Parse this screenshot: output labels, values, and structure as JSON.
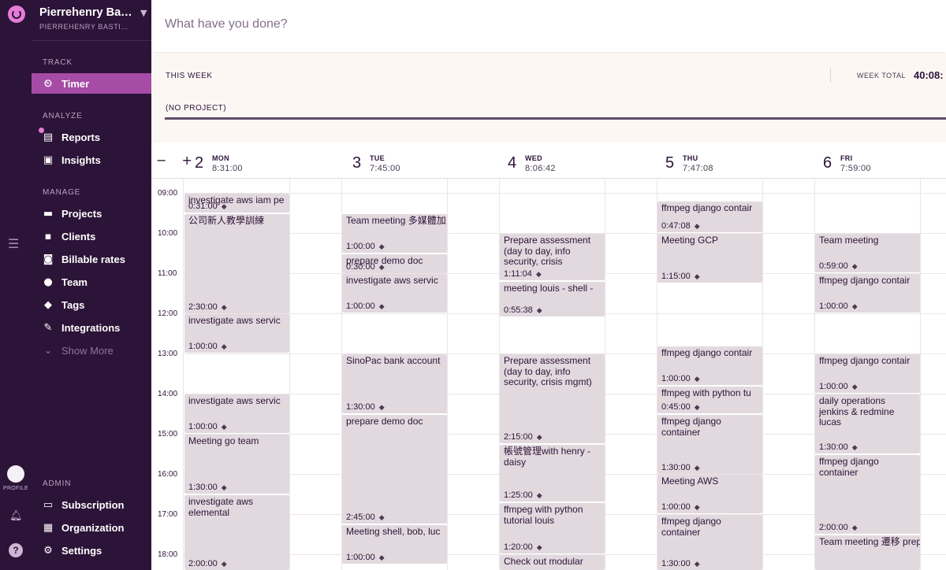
{
  "workspace": {
    "name": "Pierrehenry Bas...",
    "subtitle": "PIERREHENRY BASTIN..."
  },
  "rail": {
    "profile_label": "PROFILE"
  },
  "sidebar": {
    "sections": {
      "track": "TRACK",
      "analyze": "ANALYZE",
      "manage": "MANAGE",
      "admin": "ADMIN"
    },
    "items": [
      {
        "label": "Timer",
        "icon": "clock-icon",
        "active": true
      },
      {
        "label": "Reports",
        "icon": "reports-icon"
      },
      {
        "label": "Insights",
        "icon": "insights-icon"
      },
      {
        "label": "Projects",
        "icon": "folder-icon"
      },
      {
        "label": "Clients",
        "icon": "clients-icon"
      },
      {
        "label": "Billable rates",
        "icon": "dollar-icon"
      },
      {
        "label": "Team",
        "icon": "team-icon"
      },
      {
        "label": "Tags",
        "icon": "tag-icon"
      },
      {
        "label": "Integrations",
        "icon": "plug-icon"
      },
      {
        "label": "Show More",
        "icon": "chevron-down-icon"
      },
      {
        "label": "Subscription",
        "icon": "card-icon"
      },
      {
        "label": "Organization",
        "icon": "building-icon"
      },
      {
        "label": "Settings",
        "icon": "gear-icon"
      }
    ]
  },
  "topbar": {
    "placeholder": "What have you done?"
  },
  "weekbar": {
    "this_week": "THIS WEEK",
    "week_total_label": "WEEK TOTAL",
    "week_total": "40:08:",
    "project": "(NO PROJECT)"
  },
  "calendar": {
    "zoom": "− +",
    "hours": [
      "09:00",
      "10:00",
      "11:00",
      "12:00",
      "13:00",
      "14:00",
      "15:00",
      "16:00",
      "17:00",
      "18:00"
    ],
    "days": [
      {
        "num": "2",
        "name": "MON",
        "total": "8:31:00"
      },
      {
        "num": "3",
        "name": "TUE",
        "total": "7:45:00"
      },
      {
        "num": "4",
        "name": "WED",
        "total": "8:06:42"
      },
      {
        "num": "5",
        "name": "THU",
        "total": "7:47:08"
      },
      {
        "num": "6",
        "name": "FRI",
        "total": "7:59:00"
      }
    ],
    "entries": [
      {
        "day": 0,
        "title": "investigate aws iam pe",
        "duration": "0:31:00",
        "start": 9.0,
        "end": 9.5
      },
      {
        "day": 0,
        "title": "公司新人教學訓練",
        "duration": "2:30:00",
        "start": 9.5,
        "end": 12.0
      },
      {
        "day": 0,
        "title": "investigate aws servic",
        "duration": "1:00:00",
        "start": 12.0,
        "end": 13.0
      },
      {
        "day": 0,
        "title": "investigate aws servic",
        "duration": "1:00:00",
        "start": 14.0,
        "end": 15.0
      },
      {
        "day": 0,
        "title": "Meeting go team",
        "duration": "1:30:00",
        "start": 15.0,
        "end": 16.5
      },
      {
        "day": 0,
        "title": "investigate aws elemental",
        "duration": "2:00:00",
        "start": 16.5,
        "end": 18.5
      },
      {
        "day": 1,
        "title": "Team meeting 多媒體加",
        "duration": "1:00:00",
        "start": 9.5,
        "end": 10.5
      },
      {
        "day": 1,
        "title": "prepare demo doc",
        "duration": "0:30:00",
        "start": 10.5,
        "end": 11.0
      },
      {
        "day": 1,
        "title": "investigate aws servic",
        "duration": "1:00:00",
        "start": 11.0,
        "end": 12.0
      },
      {
        "day": 1,
        "title": "SinoPac bank account",
        "duration": "1:30:00",
        "start": 13.0,
        "end": 14.5
      },
      {
        "day": 1,
        "title": "prepare demo doc",
        "duration": "2:45:00",
        "start": 14.5,
        "end": 17.25
      },
      {
        "day": 1,
        "title": "Meeting shell, bob, luc",
        "duration": "1:00:00",
        "start": 17.25,
        "end": 18.25
      },
      {
        "day": 2,
        "title": "Prepare assessment (day to day, info security, crisis",
        "duration": "1:11:04",
        "start": 10.0,
        "end": 11.2
      },
      {
        "day": 2,
        "title": "meeting louis - shell -",
        "duration": "0:55:38",
        "start": 11.2,
        "end": 12.1
      },
      {
        "day": 2,
        "title": "Prepare assessment (day to day, info security, crisis mgmt)",
        "duration": "2:15:00",
        "start": 13.0,
        "end": 15.25
      },
      {
        "day": 2,
        "title": "帳號管理with henry - daisy",
        "duration": "1:25:00",
        "start": 15.25,
        "end": 16.7
      },
      {
        "day": 2,
        "title": "ffmpeg with python tutorial louis",
        "duration": "1:20:00",
        "start": 16.7,
        "end": 18.0
      },
      {
        "day": 2,
        "title": "Check out modular",
        "duration": "",
        "start": 18.0,
        "end": 19.0
      },
      {
        "day": 3,
        "title": "ffmpeg django contair",
        "duration": "0:47:08",
        "start": 9.2,
        "end": 10.0
      },
      {
        "day": 3,
        "title": "Meeting GCP",
        "duration": "1:15:00",
        "start": 10.0,
        "end": 11.25
      },
      {
        "day": 3,
        "title": "ffmpeg django contair",
        "duration": "1:00:00",
        "start": 12.8,
        "end": 13.8
      },
      {
        "day": 3,
        "title": "ffmpeg with python tu",
        "duration": "0:45:00",
        "start": 13.8,
        "end": 14.5
      },
      {
        "day": 3,
        "title": "ffmpeg django container",
        "duration": "1:30:00",
        "start": 14.5,
        "end": 16.0
      },
      {
        "day": 3,
        "title": "Meeting AWS",
        "duration": "1:00:00",
        "start": 16.0,
        "end": 17.0
      },
      {
        "day": 3,
        "title": "ffmpeg django container",
        "duration": "1:30:00",
        "start": 17.0,
        "end": 18.5
      },
      {
        "day": 4,
        "title": "Team meeting",
        "duration": "0:59:00",
        "start": 10.0,
        "end": 11.0
      },
      {
        "day": 4,
        "title": "ffmpeg django contair",
        "duration": "1:00:00",
        "start": 11.0,
        "end": 12.0
      },
      {
        "day": 4,
        "title": "ffmpeg django contair",
        "duration": "1:00:00",
        "start": 13.0,
        "end": 14.0
      },
      {
        "day": 4,
        "title": "daily operations jenkins & redmine lucas",
        "duration": "1:30:00",
        "start": 14.0,
        "end": 15.5
      },
      {
        "day": 4,
        "title": "ffmpeg django container",
        "duration": "2:00:00",
        "start": 15.5,
        "end": 17.5
      },
      {
        "day": 4,
        "title": "Team meeting 遷移 preparation",
        "duration": "",
        "start": 17.5,
        "end": 18.5
      }
    ]
  },
  "colors": {
    "sidebar_bg": "#2c1338",
    "accent": "#a64ca6",
    "entry_bg": "#e2d9de"
  }
}
